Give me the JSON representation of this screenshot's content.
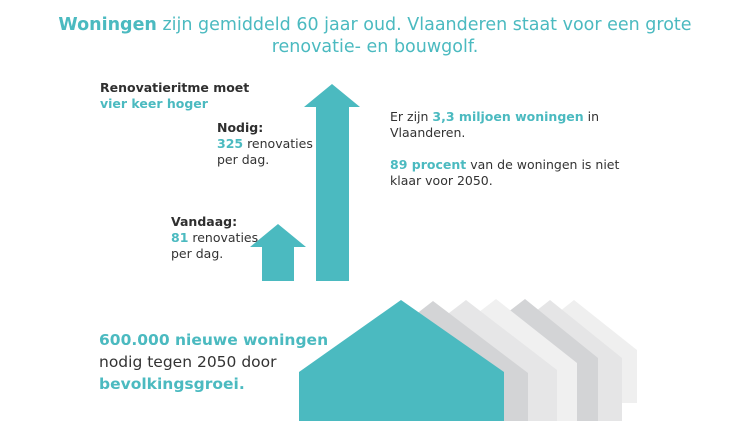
{
  "title": {
    "bold": "Woningen",
    "rest": " zijn gemiddeld 60 jaar oud. Vlaanderen staat voor een grote",
    "line2": "renovatie- en bouwgolf."
  },
  "rhythm": {
    "line1": "Renovatieritme moet",
    "line2": "vier keer hoger"
  },
  "needed": {
    "label": "Nodig:",
    "number": "325",
    "text": " renovaties",
    "line3": "per dag."
  },
  "today": {
    "label": "Vandaag:",
    "number": "81",
    "text": " renovaties",
    "line3": "per dag."
  },
  "facts": {
    "f1_pre": "Er zijn ",
    "f1_bold": "3,3 miljoen woningen",
    "f1_post": " in",
    "f1_line2": "Vlaanderen.",
    "f2_bold": "89 procent",
    "f2_post": " van de woningen is niet",
    "f2_line2": "klaar voor 2050."
  },
  "new_homes": {
    "bold": "600.000 nieuwe woningen",
    "line2": "nodig tegen 2050 door",
    "line3": "bevolkingsgroei."
  },
  "colors": {
    "teal": "#4bbac0",
    "gray_dark": "#d3d4d6",
    "gray_light": "#ebebec"
  }
}
